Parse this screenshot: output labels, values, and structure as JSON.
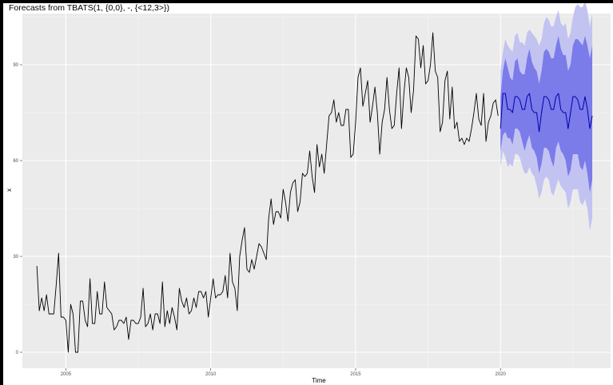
{
  "chart_data": {
    "type": "line",
    "title": "Forecasts from TBATS(1, {0,0}, -, {<12,3>})",
    "xlabel": "Time",
    "ylabel": "x",
    "xlim": [
      2003.5,
      2023.8
    ],
    "ylim": [
      -5,
      106
    ],
    "x_ticks": [
      2005,
      2010,
      2015,
      2020
    ],
    "y_ticks": [
      0,
      30,
      60,
      90
    ],
    "grid": true,
    "legend": "none",
    "colors": {
      "panel": "#ebebeb",
      "grid_major": "#ffffff",
      "grid_minor": "#f5f5f5",
      "series": "#000000",
      "forecast": "#0000aa",
      "band_95": "#c3c3f2",
      "band_80": "#7b7bea"
    },
    "series": [
      {
        "start": 2004.0,
        "frequency": 12,
        "values": [
          27,
          13,
          17,
          13,
          18,
          12,
          12,
          12,
          21,
          31,
          11,
          11,
          10,
          0,
          15,
          12,
          0,
          0,
          16,
          16,
          10,
          8,
          23,
          9,
          9,
          19,
          12,
          12,
          22,
          14,
          13,
          12,
          7,
          8,
          10,
          10,
          9,
          11,
          4,
          10,
          10,
          9,
          9,
          11,
          20,
          8,
          9,
          12,
          7,
          12,
          12,
          9,
          22,
          8,
          13,
          9,
          14,
          11,
          7,
          20,
          16,
          14,
          17,
          12,
          13,
          17,
          14,
          19,
          19,
          17,
          19,
          11,
          17,
          23,
          17,
          18,
          18,
          19,
          24,
          17,
          31,
          22,
          20,
          13,
          30,
          35,
          39,
          26,
          25,
          29,
          26,
          30,
          34,
          33,
          31,
          29,
          42,
          48,
          40,
          44,
          44,
          42,
          51,
          47,
          41,
          50,
          53,
          54,
          44,
          47,
          56,
          55,
          56,
          63,
          55,
          50,
          65,
          58,
          62,
          56,
          65,
          74,
          75,
          79,
          72,
          75,
          71,
          71,
          76,
          76,
          61,
          62,
          72,
          86,
          89,
          77,
          81,
          85,
          72,
          77,
          83,
          75,
          62,
          72,
          76,
          86,
          76,
          70,
          71,
          81,
          89,
          70,
          81,
          89,
          86,
          75,
          82,
          99,
          98,
          89,
          96,
          84,
          85,
          90,
          100,
          88,
          86,
          69,
          72,
          85,
          88,
          73,
          83,
          70,
          72,
          66,
          67,
          65,
          67,
          66,
          70,
          75,
          81,
          73,
          71,
          81,
          66,
          72,
          74,
          78,
          79,
          74
        ]
      }
    ],
    "forecast": {
      "start": 2020.0,
      "frequency": 12,
      "point": [
        70,
        81,
        81,
        76,
        76,
        75,
        80,
        80,
        79,
        76,
        76,
        80,
        81,
        76,
        75,
        75,
        69,
        75,
        80,
        80,
        79,
        76,
        76,
        80,
        81,
        76,
        75,
        75,
        70,
        75,
        80,
        80,
        79,
        76,
        76,
        80,
        76,
        70,
        74
      ],
      "lo80": [
        63,
        68,
        69,
        67,
        67,
        65,
        70,
        70,
        69,
        66,
        63,
        66,
        68,
        64,
        63,
        61,
        56,
        59,
        64,
        64,
        63,
        60,
        58,
        64,
        66,
        63,
        62,
        60,
        55,
        57,
        62,
        62,
        62,
        58,
        57,
        60,
        56,
        50,
        54
      ],
      "hi80": [
        80,
        88,
        92,
        89,
        86,
        85,
        91,
        92,
        88,
        87,
        87,
        92,
        95,
        91,
        89,
        88,
        84,
        88,
        94,
        95,
        94,
        92,
        92,
        96,
        99,
        95,
        93,
        93,
        88,
        90,
        96,
        98,
        98,
        97,
        96,
        99,
        96,
        92,
        96
      ],
      "lo95": [
        58,
        63,
        61,
        58,
        59,
        58,
        62,
        62,
        61,
        58,
        56,
        56,
        58,
        56,
        55,
        52,
        48,
        50,
        54,
        55,
        54,
        50,
        49,
        52,
        54,
        52,
        51,
        50,
        45,
        47,
        51,
        51,
        51,
        47,
        46,
        48,
        45,
        38,
        42
      ],
      "hi95": [
        88,
        94,
        98,
        96,
        95,
        94,
        99,
        100,
        97,
        97,
        96,
        100,
        101,
        100,
        99,
        98,
        96,
        98,
        103,
        105,
        104,
        102,
        102,
        105,
        107,
        103,
        102,
        103,
        98,
        100,
        105,
        108,
        109,
        108,
        108,
        110,
        107,
        102,
        106
      ]
    }
  }
}
